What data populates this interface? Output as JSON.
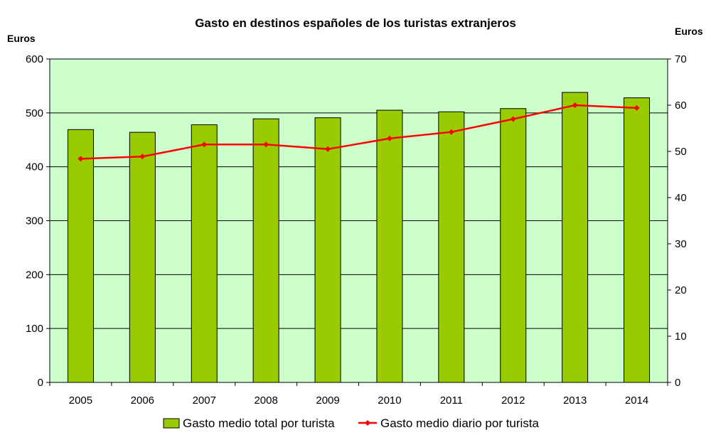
{
  "chart_data": {
    "type": "bar",
    "title": "Gasto en destinos españoles de los turistas extranjeros",
    "ylabel": "Euros",
    "y2label": "Euros",
    "categories": [
      "2005",
      "2006",
      "2007",
      "2008",
      "2009",
      "2010",
      "2011",
      "2012",
      "2013",
      "2014"
    ],
    "ylim": [
      0,
      600
    ],
    "yticks": [
      "0",
      "100",
      "200",
      "300",
      "400",
      "500",
      "600"
    ],
    "y2lim": [
      0,
      70
    ],
    "y2ticks": [
      "0",
      "10",
      "20",
      "30",
      "40",
      "50",
      "60",
      "70"
    ],
    "grid": true,
    "legend_position": "bottom",
    "series": [
      {
        "name": "Gasto medio total por turista",
        "type": "bar",
        "axis": "left",
        "color": "#99cc00",
        "values": [
          469,
          464,
          478,
          489,
          491,
          505,
          502,
          508,
          538,
          528
        ]
      },
      {
        "name": "Gasto medio diario por turista",
        "type": "line",
        "axis": "right",
        "color": "#ff0000",
        "values": [
          48.4,
          48.9,
          51.5,
          51.5,
          50.5,
          52.8,
          54.2,
          57.0,
          60.0,
          59.4
        ]
      }
    ],
    "colors": {
      "plot_background": "#ccffcc",
      "gridline": "#000000",
      "bar_outline": "#000000"
    }
  }
}
